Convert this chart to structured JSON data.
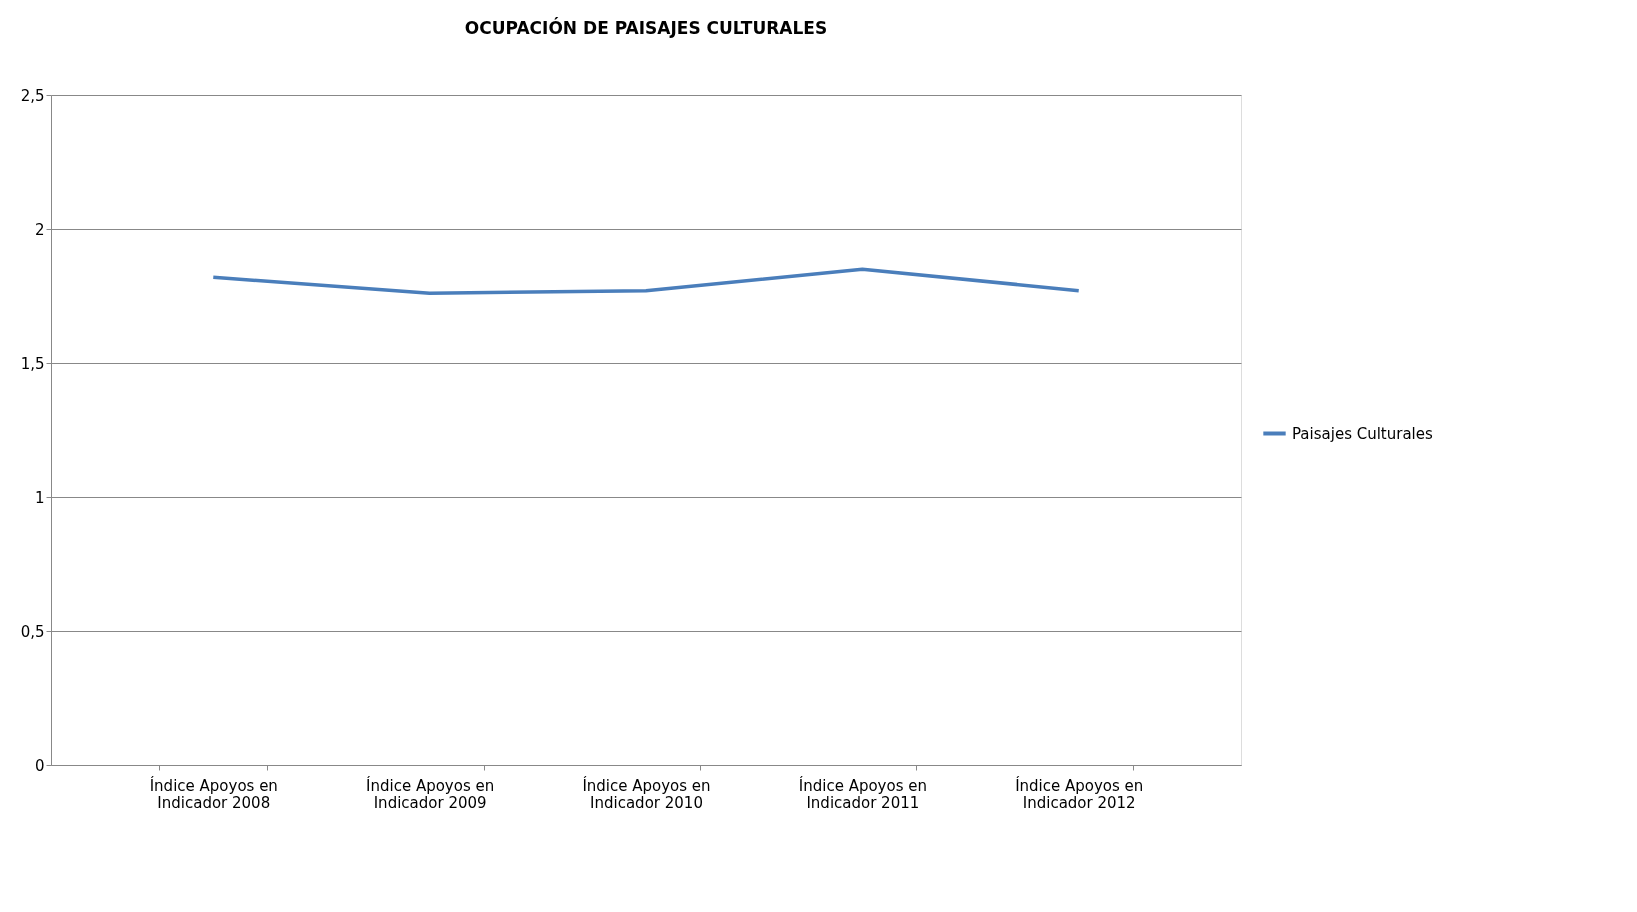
{
  "chart_data": {
    "type": "line",
    "title": "OCUPACIÓN DE PAISAJES CULTURALES",
    "categories": [
      [
        "Índice Apoyos en",
        "Indicador 2008"
      ],
      [
        "Índice Apoyos en",
        "Indicador 2009"
      ],
      [
        "Índice Apoyos en",
        "Indicador 2010"
      ],
      [
        "Índice Apoyos en",
        "Indicador 2011"
      ],
      [
        "Índice Apoyos en",
        "Indicador 2012"
      ]
    ],
    "series": [
      {
        "name": "Paisajes Culturales",
        "color": "#4a7ebb",
        "values": [
          1.82,
          1.76,
          1.77,
          1.85,
          1.77
        ]
      }
    ],
    "ylim": [
      0,
      2.5
    ],
    "yticks": [
      0,
      {
        "value": 0.5,
        "label": "0,5"
      },
      1,
      {
        "value": 1.5,
        "label": "1,5"
      },
      2,
      {
        "value": 2.5,
        "label": "2,5"
      }
    ],
    "grid": "y",
    "legend": "right",
    "marker": "none",
    "line_style": "solid"
  }
}
